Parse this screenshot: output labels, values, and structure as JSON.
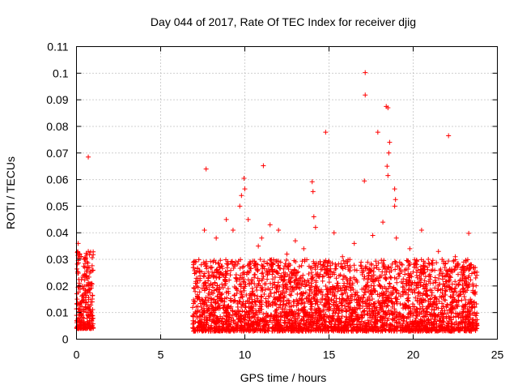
{
  "chart_data": {
    "type": "scatter",
    "title": "Day 044 of 2017, Rate Of TEC Index for receiver djig",
    "xlabel": "GPS time / hours",
    "ylabel": "ROTI / TECUs",
    "xlim": [
      0,
      25
    ],
    "ylim": [
      0,
      0.11
    ],
    "xticks": [
      "0",
      "5",
      "10",
      "15",
      "20",
      "25"
    ],
    "yticks": [
      "0",
      "0.01",
      "0.02",
      "0.03",
      "0.04",
      "0.05",
      "0.06",
      "0.07",
      "0.08",
      "0.09",
      "0.1",
      "0.11"
    ],
    "grid": true,
    "marker": "+",
    "color": "#ff0000",
    "series": [
      {
        "name": "ROTI",
        "outliers": [
          [
            0.7,
            0.0685
          ],
          [
            7.7,
            0.064
          ],
          [
            9.95,
            0.0605
          ],
          [
            10.0,
            0.0565
          ],
          [
            11.1,
            0.0652
          ],
          [
            14.8,
            0.0778
          ],
          [
            17.15,
            0.1002
          ],
          [
            17.15,
            0.0918
          ],
          [
            17.1,
            0.0595
          ],
          [
            17.9,
            0.0778
          ],
          [
            18.4,
            0.0875
          ],
          [
            18.5,
            0.087
          ],
          [
            22.1,
            0.0765
          ],
          [
            23.3,
            0.0398
          ],
          [
            14.0,
            0.0592
          ],
          [
            14.05,
            0.0555
          ],
          [
            18.6,
            0.074
          ],
          [
            18.55,
            0.07
          ],
          [
            18.45,
            0.065
          ],
          [
            18.5,
            0.0615
          ],
          [
            18.9,
            0.0565
          ],
          [
            18.95,
            0.0525
          ],
          [
            18.9,
            0.05
          ],
          [
            9.8,
            0.054
          ],
          [
            9.7,
            0.05
          ],
          [
            10.2,
            0.045
          ],
          [
            11.5,
            0.043
          ],
          [
            12.0,
            0.041
          ],
          [
            14.1,
            0.046
          ],
          [
            14.2,
            0.042
          ],
          [
            15.3,
            0.04
          ],
          [
            18.2,
            0.044
          ],
          [
            20.5,
            0.041
          ],
          [
            7.6,
            0.041
          ],
          [
            8.3,
            0.038
          ],
          [
            8.9,
            0.045
          ],
          [
            11.0,
            0.038
          ],
          [
            13.0,
            0.037
          ],
          [
            16.5,
            0.036
          ],
          [
            19.0,
            0.038
          ],
          [
            0.1,
            0.036
          ],
          [
            0.7,
            0.033
          ],
          [
            21.5,
            0.033
          ],
          [
            22.5,
            0.031
          ],
          [
            6.95,
            0.028
          ],
          [
            9.3,
            0.041
          ],
          [
            10.8,
            0.035
          ],
          [
            12.5,
            0.032
          ],
          [
            13.5,
            0.034
          ],
          [
            15.8,
            0.031
          ],
          [
            17.6,
            0.039
          ],
          [
            19.8,
            0.034
          ],
          [
            20.9,
            0.03
          ],
          [
            23.0,
            0.029
          ]
        ],
        "bands": [
          {
            "x_range": [
              0.0,
              1.0
            ],
            "y_range": [
              0.004,
              0.033
            ],
            "count": 260
          },
          {
            "x_range": [
              6.9,
              23.8
            ],
            "y_range": [
              0.003,
              0.03
            ],
            "count": 3400
          }
        ]
      }
    ]
  }
}
